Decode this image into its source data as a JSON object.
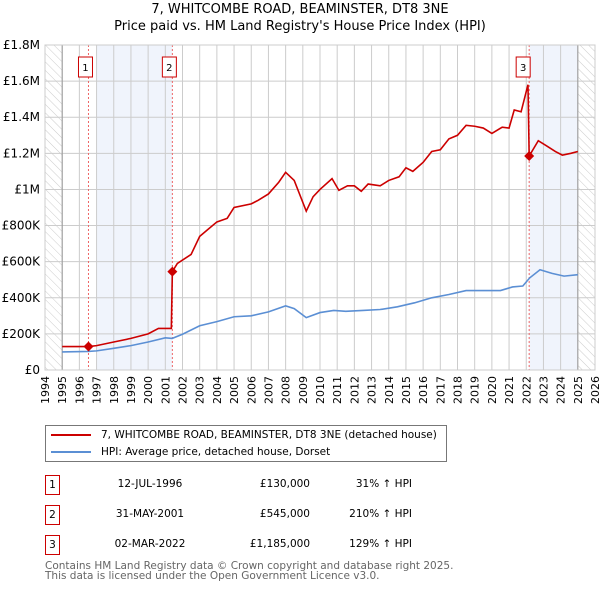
{
  "chart_data": {
    "type": "line",
    "title": "7, WHITCOMBE ROAD, BEAMINSTER, DT8 3NE",
    "subtitle": "Price paid vs. HM Land Registry's House Price Index (HPI)",
    "xlim": [
      1994,
      2026
    ],
    "ylim": [
      0,
      1800000
    ],
    "x_ticks": [
      "1994",
      "1995",
      "1996",
      "1997",
      "1998",
      "1999",
      "2000",
      "2001",
      "2002",
      "2003",
      "2004",
      "2005",
      "2006",
      "2007",
      "2008",
      "2009",
      "2010",
      "2011",
      "2012",
      "2013",
      "2014",
      "2015",
      "2016",
      "2017",
      "2018",
      "2019",
      "2020",
      "2021",
      "2022",
      "2023",
      "2024",
      "2025",
      "2026"
    ],
    "y_ticks": [
      {
        "v": 0,
        "l": "£0"
      },
      {
        "v": 200000,
        "l": "£200K"
      },
      {
        "v": 400000,
        "l": "£400K"
      },
      {
        "v": 600000,
        "l": "£600K"
      },
      {
        "v": 800000,
        "l": "£800K"
      },
      {
        "v": 1000000,
        "l": "£1M"
      },
      {
        "v": 1200000,
        "l": "£1.2M"
      },
      {
        "v": 1400000,
        "l": "£1.4M"
      },
      {
        "v": 1600000,
        "l": "£1.6M"
      },
      {
        "v": 1800000,
        "l": "£1.8M"
      }
    ],
    "grid": true,
    "series": [
      {
        "name": "7, WHITCOMBE ROAD, BEAMINSTER, DT8 3NE (detached house)",
        "color": "#cc0000",
        "points": [
          [
            1995,
            130000
          ],
          [
            1996.53,
            130000
          ],
          [
            1997,
            135000
          ],
          [
            1998,
            155000
          ],
          [
            1999,
            175000
          ],
          [
            2000,
            200000
          ],
          [
            2000.6,
            230000
          ],
          [
            2001.35,
            230000
          ],
          [
            2001.41,
            545000
          ],
          [
            2001.7,
            590000
          ],
          [
            2002.5,
            640000
          ],
          [
            2003,
            740000
          ],
          [
            2003.5,
            780000
          ],
          [
            2004,
            820000
          ],
          [
            2004.6,
            840000
          ],
          [
            2005,
            900000
          ],
          [
            2006,
            920000
          ],
          [
            2006.4,
            940000
          ],
          [
            2007,
            975000
          ],
          [
            2007.6,
            1040000
          ],
          [
            2008,
            1095000
          ],
          [
            2008.5,
            1050000
          ],
          [
            2009.2,
            880000
          ],
          [
            2009.6,
            960000
          ],
          [
            2010,
            1000000
          ],
          [
            2010.7,
            1060000
          ],
          [
            2011.1,
            995000
          ],
          [
            2011.6,
            1020000
          ],
          [
            2012,
            1020000
          ],
          [
            2012.4,
            990000
          ],
          [
            2012.8,
            1030000
          ],
          [
            2013.5,
            1020000
          ],
          [
            2014,
            1050000
          ],
          [
            2014.6,
            1070000
          ],
          [
            2015,
            1120000
          ],
          [
            2015.4,
            1100000
          ],
          [
            2016,
            1150000
          ],
          [
            2016.5,
            1210000
          ],
          [
            2017,
            1220000
          ],
          [
            2017.5,
            1280000
          ],
          [
            2018,
            1300000
          ],
          [
            2018.5,
            1355000
          ],
          [
            2019,
            1350000
          ],
          [
            2019.5,
            1340000
          ],
          [
            2020,
            1310000
          ],
          [
            2020.6,
            1345000
          ],
          [
            2021,
            1340000
          ],
          [
            2021.3,
            1440000
          ],
          [
            2021.7,
            1430000
          ],
          [
            2022.1,
            1580000
          ],
          [
            2022.17,
            1185000
          ],
          [
            2022.7,
            1270000
          ],
          [
            2023.2,
            1240000
          ],
          [
            2023.7,
            1210000
          ],
          [
            2024.1,
            1190000
          ],
          [
            2024.6,
            1200000
          ],
          [
            2025,
            1210000
          ]
        ]
      },
      {
        "name": "HPI: Average price, detached house, Dorset",
        "color": "#5b8fd4",
        "points": [
          [
            1995,
            100000
          ],
          [
            1996.5,
            103000
          ],
          [
            1997,
            106000
          ],
          [
            1998,
            120000
          ],
          [
            1999,
            135000
          ],
          [
            2000,
            155000
          ],
          [
            2001,
            178000
          ],
          [
            2001.4,
            175000
          ],
          [
            2002,
            198000
          ],
          [
            2003,
            245000
          ],
          [
            2004,
            268000
          ],
          [
            2005,
            295000
          ],
          [
            2006,
            300000
          ],
          [
            2007,
            322000
          ],
          [
            2008,
            355000
          ],
          [
            2008.5,
            340000
          ],
          [
            2009.2,
            290000
          ],
          [
            2010,
            318000
          ],
          [
            2010.8,
            330000
          ],
          [
            2011.5,
            325000
          ],
          [
            2012.5,
            330000
          ],
          [
            2013.5,
            335000
          ],
          [
            2014.5,
            350000
          ],
          [
            2015.5,
            372000
          ],
          [
            2016.5,
            400000
          ],
          [
            2017.5,
            418000
          ],
          [
            2018.5,
            440000
          ],
          [
            2019.5,
            440000
          ],
          [
            2020.5,
            440000
          ],
          [
            2021.2,
            460000
          ],
          [
            2021.8,
            465000
          ],
          [
            2022.2,
            510000
          ],
          [
            2022.8,
            555000
          ],
          [
            2023.5,
            535000
          ],
          [
            2024.2,
            520000
          ],
          [
            2025,
            528000
          ]
        ]
      }
    ],
    "sales": [
      {
        "n": "1",
        "x": 1996.53,
        "y": 130000
      },
      {
        "n": "2",
        "x": 2001.41,
        "y": 545000
      },
      {
        "n": "3",
        "x": 2022.17,
        "y": 1185000
      }
    ]
  },
  "legend": {
    "red": "7, WHITCOMBE ROAD, BEAMINSTER, DT8 3NE (detached house)",
    "blue": "HPI: Average price, detached house, Dorset"
  },
  "table": [
    {
      "n": "1",
      "date": "12-JUL-1996",
      "price": "£130,000",
      "hpi": "31% ↑ HPI"
    },
    {
      "n": "2",
      "date": "31-MAY-2001",
      "price": "£545,000",
      "hpi": "210% ↑ HPI"
    },
    {
      "n": "3",
      "date": "02-MAR-2022",
      "price": "£1,185,000",
      "hpi": "129% ↑ HPI"
    }
  ],
  "footer": {
    "line1": "Contains HM Land Registry data © Crown copyright and database right 2025.",
    "line2": "This data is licensed under the Open Government Licence v3.0."
  }
}
